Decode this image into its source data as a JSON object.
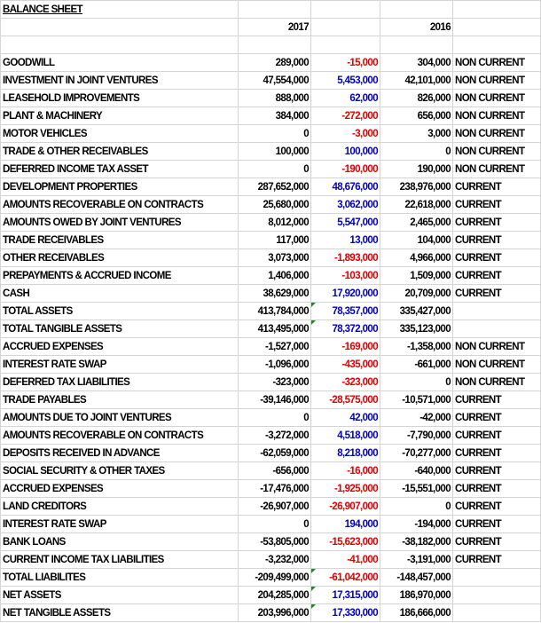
{
  "sheet": {
    "title": "BALANCE SHEET",
    "year_current": "2017",
    "year_prior": "2016",
    "rows": [
      [
        "GOODWILL",
        "289,000",
        "-15,000",
        "304,000",
        "NON CURRENT"
      ],
      [
        "INVESTMENT IN JOINT VENTURES",
        "47,554,000",
        "5,453,000",
        "42,101,000",
        "NON CURRENT"
      ],
      [
        "LEASEHOLD IMPROVEMENTS",
        "888,000",
        "62,000",
        "826,000",
        "NON CURRENT"
      ],
      [
        "PLANT & MACHINERY",
        "384,000",
        "-272,000",
        "656,000",
        "NON CURRENT"
      ],
      [
        "MOTOR VEHICLES",
        "0",
        "-3,000",
        "3,000",
        "NON CURRENT"
      ],
      [
        "TRADE & OTHER RECEIVABLES",
        "100,000",
        "100,000",
        "0",
        "NON CURRENT"
      ],
      [
        "DEFERRED INCOME TAX ASSET",
        "0",
        "-190,000",
        "190,000",
        "NON CURRENT"
      ],
      [
        "DEVELOPMENT PROPERTIES",
        "287,652,000",
        "48,676,000",
        "238,976,000",
        "CURRENT"
      ],
      [
        "AMOUNTS RECOVERABLE ON CONTRACTS",
        "25,680,000",
        "3,062,000",
        "22,618,000",
        "CURRENT"
      ],
      [
        "AMOUNTS OWED BY JOINT VENTURES",
        "8,012,000",
        "5,547,000",
        "2,465,000",
        "CURRENT"
      ],
      [
        "TRADE RECEIVABLES",
        "117,000",
        "13,000",
        "104,000",
        "CURRENT"
      ],
      [
        "OTHER RECEIVABLES",
        "3,073,000",
        "-1,893,000",
        "4,966,000",
        "CURRENT"
      ],
      [
        "PREPAYMENTS & ACCRUED INCOME",
        "1,406,000",
        "-103,000",
        "1,509,000",
        "CURRENT"
      ],
      [
        "CASH",
        "38,629,000",
        "17,920,000",
        "20,709,000",
        "CURRENT"
      ],
      [
        "TOTAL ASSETS",
        "413,784,000",
        "78,357,000",
        "335,427,000",
        ""
      ],
      [
        "TOTAL TANGIBLE ASSETS",
        "413,495,000",
        "78,372,000",
        "335,123,000",
        ""
      ],
      [
        "ACCRUED EXPENSES",
        "-1,527,000",
        "-169,000",
        "-1,358,000",
        "NON CURRENT"
      ],
      [
        "INTEREST RATE SWAP",
        "-1,096,000",
        "-435,000",
        "-661,000",
        "NON CURRENT"
      ],
      [
        "DEFERRED TAX LIABILITIES",
        "-323,000",
        "-323,000",
        "0",
        "NON CURRENT"
      ],
      [
        "TRADE PAYABLES",
        "-39,146,000",
        "-28,575,000",
        "-10,571,000",
        "CURRENT"
      ],
      [
        "AMOUNTS DUE TO JOINT VENTURES",
        "0",
        "42,000",
        "-42,000",
        "CURRENT"
      ],
      [
        "AMOUNTS RECOVERABLE ON CONTRACTS",
        "-3,272,000",
        "4,518,000",
        "-7,790,000",
        "CURRENT"
      ],
      [
        "DEPOSITS RECEIVED IN ADVANCE",
        "-62,059,000",
        "8,218,000",
        "-70,277,000",
        "CURRENT"
      ],
      [
        "SOCIAL SECURITY & OTHER TAXES",
        "-656,000",
        "-16,000",
        "-640,000",
        "CURRENT"
      ],
      [
        "ACCRUED EXPENSES",
        "-17,476,000",
        "-1,925,000",
        "-15,551,000",
        "CURRENT"
      ],
      [
        "LAND CREDITORS",
        "-26,907,000",
        "-26,907,000",
        "0",
        "CURRENT"
      ],
      [
        "INTEREST RATE SWAP",
        "0",
        "194,000",
        "-194,000",
        "CURRENT"
      ],
      [
        "BANK LOANS",
        "-53,805,000",
        "-15,623,000",
        "-38,182,000",
        "CURRENT"
      ],
      [
        "CURRENT INCOME TAX LIABILITIES",
        "-3,232,000",
        "-41,000",
        "-3,191,000",
        "CURRENT"
      ],
      [
        "TOTAL LIABILITES",
        "-209,499,000",
        "-61,042,000",
        "-148,457,000",
        ""
      ],
      [
        "NET ASSETS",
        "204,285,000",
        "17,315,000",
        "186,970,000",
        ""
      ],
      [
        "NET TANGIBLE ASSETS",
        "203,996,000",
        "17,330,000",
        "186,666,000",
        ""
      ]
    ],
    "formula_flag_rows": [
      14,
      15,
      29,
      30,
      31
    ]
  },
  "colors": {
    "decrease": "#e00000",
    "increase": "#0000c0",
    "grid": "#d4d4d4"
  }
}
